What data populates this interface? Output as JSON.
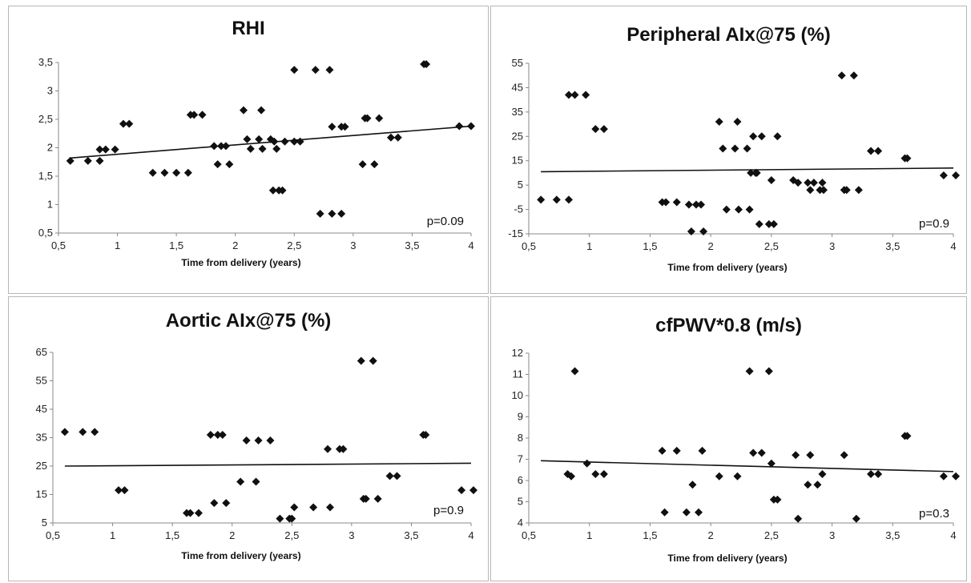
{
  "chart_data": [
    {
      "type": "scatter",
      "title": "RHI",
      "xlabel": "Time from delivery (years)",
      "ylabel": "",
      "xlim": [
        0.5,
        4
      ],
      "ylim": [
        0.5,
        3.5
      ],
      "xticks": [
        "0,5",
        "1",
        "1,5",
        "2",
        "2,5",
        "3",
        "3,5",
        "4"
      ],
      "yticks": [
        "0,5",
        "1",
        "1,5",
        "2",
        "2,5",
        "3",
        "3,5"
      ],
      "annotation": "p=0.09",
      "trend": [
        [
          0.6,
          1.82
        ],
        [
          4.0,
          2.38
        ]
      ],
      "points": [
        [
          0.6,
          1.77
        ],
        [
          0.75,
          1.77
        ],
        [
          0.85,
          1.77
        ],
        [
          0.85,
          1.97
        ],
        [
          0.9,
          1.97
        ],
        [
          0.98,
          1.97
        ],
        [
          1.05,
          2.42
        ],
        [
          1.1,
          2.42
        ],
        [
          1.3,
          1.56
        ],
        [
          1.4,
          1.56
        ],
        [
          1.5,
          1.56
        ],
        [
          1.6,
          1.56
        ],
        [
          1.62,
          2.58
        ],
        [
          1.65,
          2.58
        ],
        [
          1.72,
          2.58
        ],
        [
          1.82,
          2.03
        ],
        [
          1.85,
          1.71
        ],
        [
          1.88,
          2.03
        ],
        [
          1.92,
          2.03
        ],
        [
          1.95,
          1.71
        ],
        [
          2.07,
          2.66
        ],
        [
          2.1,
          2.15
        ],
        [
          2.13,
          1.98
        ],
        [
          2.2,
          2.15
        ],
        [
          2.22,
          2.66
        ],
        [
          2.23,
          1.98
        ],
        [
          2.3,
          2.15
        ],
        [
          2.32,
          1.25
        ],
        [
          2.33,
          2.11
        ],
        [
          2.35,
          1.98
        ],
        [
          2.37,
          1.25
        ],
        [
          2.4,
          1.25
        ],
        [
          2.42,
          2.11
        ],
        [
          2.5,
          3.37
        ],
        [
          2.5,
          2.11
        ],
        [
          2.55,
          2.11
        ],
        [
          2.68,
          3.37
        ],
        [
          2.72,
          0.84
        ],
        [
          2.8,
          3.37
        ],
        [
          2.82,
          2.37
        ],
        [
          2.82,
          0.84
        ],
        [
          2.9,
          2.37
        ],
        [
          2.9,
          0.84
        ],
        [
          2.93,
          2.37
        ],
        [
          3.08,
          1.71
        ],
        [
          3.1,
          2.52
        ],
        [
          3.12,
          2.52
        ],
        [
          3.18,
          1.71
        ],
        [
          3.22,
          2.52
        ],
        [
          3.32,
          2.18
        ],
        [
          3.38,
          2.18
        ],
        [
          3.6,
          3.47
        ],
        [
          3.62,
          3.47
        ],
        [
          3.9,
          2.38
        ],
        [
          4.0,
          2.38
        ]
      ]
    },
    {
      "type": "scatter",
      "title": "Peripheral AIx@75 (%)",
      "xlabel": "Time from delivery (years)",
      "ylabel": "",
      "xlim": [
        0.5,
        4
      ],
      "ylim": [
        -15,
        55
      ],
      "xticks": [
        "0,5",
        "1",
        "1,5",
        "2",
        "2,5",
        "3",
        "3,5",
        "4"
      ],
      "yticks": [
        "-15",
        "-5",
        "5",
        "15",
        "25",
        "35",
        "45",
        "55"
      ],
      "annotation": "p=0.9",
      "trend": [
        [
          0.6,
          10.5
        ],
        [
          4.0,
          12
        ]
      ],
      "points": [
        [
          0.6,
          -1
        ],
        [
          0.73,
          -1
        ],
        [
          0.83,
          -1
        ],
        [
          0.83,
          42
        ],
        [
          0.88,
          42
        ],
        [
          0.97,
          42
        ],
        [
          1.05,
          28
        ],
        [
          1.12,
          28
        ],
        [
          1.6,
          -2
        ],
        [
          1.63,
          -2
        ],
        [
          1.72,
          -2
        ],
        [
          1.82,
          -3
        ],
        [
          1.84,
          -14
        ],
        [
          1.88,
          -3
        ],
        [
          1.92,
          -3
        ],
        [
          1.94,
          -14
        ],
        [
          2.07,
          31
        ],
        [
          2.1,
          20
        ],
        [
          2.13,
          -5
        ],
        [
          2.2,
          20
        ],
        [
          2.22,
          31
        ],
        [
          2.23,
          -5
        ],
        [
          2.3,
          20
        ],
        [
          2.32,
          -5
        ],
        [
          2.33,
          10
        ],
        [
          2.35,
          25
        ],
        [
          2.37,
          10
        ],
        [
          2.38,
          10
        ],
        [
          2.4,
          -11
        ],
        [
          2.42,
          25
        ],
        [
          2.48,
          -11
        ],
        [
          2.5,
          7
        ],
        [
          2.52,
          -11
        ],
        [
          2.55,
          25
        ],
        [
          2.68,
          7
        ],
        [
          2.72,
          6
        ],
        [
          2.8,
          6
        ],
        [
          2.82,
          3
        ],
        [
          2.85,
          6
        ],
        [
          2.9,
          3
        ],
        [
          2.92,
          6
        ],
        [
          2.93,
          3
        ],
        [
          3.08,
          50
        ],
        [
          3.1,
          3
        ],
        [
          3.12,
          3
        ],
        [
          3.18,
          50
        ],
        [
          3.22,
          3
        ],
        [
          3.32,
          19
        ],
        [
          3.38,
          19
        ],
        [
          3.6,
          16
        ],
        [
          3.62,
          16
        ],
        [
          3.92,
          9
        ],
        [
          4.02,
          9
        ]
      ]
    },
    {
      "type": "scatter",
      "title": "Aortic AIx@75 (%)",
      "xlabel": "Time from delivery (years)",
      "ylabel": "",
      "xlim": [
        0.5,
        4
      ],
      "ylim": [
        5,
        65
      ],
      "xticks": [
        "0,5",
        "1",
        "1,5",
        "2",
        "2,5",
        "3",
        "3,5",
        "4"
      ],
      "yticks": [
        "5",
        "15",
        "25",
        "35",
        "45",
        "55",
        "65"
      ],
      "annotation": "p=0.9",
      "trend": [
        [
          0.6,
          25
        ],
        [
          4.0,
          26
        ]
      ],
      "points": [
        [
          0.6,
          37
        ],
        [
          0.75,
          37
        ],
        [
          0.85,
          37
        ],
        [
          1.05,
          16.5
        ],
        [
          1.1,
          16.5
        ],
        [
          1.62,
          8.5
        ],
        [
          1.65,
          8.5
        ],
        [
          1.72,
          8.5
        ],
        [
          1.82,
          36
        ],
        [
          1.85,
          12
        ],
        [
          1.88,
          36
        ],
        [
          1.92,
          36
        ],
        [
          1.95,
          12
        ],
        [
          2.07,
          19.5
        ],
        [
          2.12,
          34
        ],
        [
          2.2,
          19.5
        ],
        [
          2.22,
          34
        ],
        [
          2.32,
          34
        ],
        [
          2.4,
          6.5
        ],
        [
          2.48,
          6.5
        ],
        [
          2.5,
          6.5
        ],
        [
          2.52,
          10.5
        ],
        [
          2.68,
          10.5
        ],
        [
          2.8,
          31
        ],
        [
          2.82,
          10.5
        ],
        [
          2.9,
          31
        ],
        [
          2.93,
          31
        ],
        [
          3.08,
          62
        ],
        [
          3.1,
          13.5
        ],
        [
          3.12,
          13.5
        ],
        [
          3.18,
          62
        ],
        [
          3.22,
          13.5
        ],
        [
          3.32,
          21.5
        ],
        [
          3.38,
          21.5
        ],
        [
          3.6,
          36
        ],
        [
          3.62,
          36
        ],
        [
          3.92,
          16.5
        ],
        [
          4.02,
          16.5
        ]
      ]
    },
    {
      "type": "scatter",
      "title": "cfPWV*0.8 (m/s)",
      "xlabel": "Time from delivery (years)",
      "ylabel": "",
      "xlim": [
        0.5,
        4
      ],
      "ylim": [
        4,
        12
      ],
      "xticks": [
        "0,5",
        "1",
        "1,5",
        "2",
        "2,5",
        "3",
        "3,5",
        "4"
      ],
      "yticks": [
        "4",
        "5",
        "6",
        "7",
        "8",
        "9",
        "10",
        "11",
        "12"
      ],
      "annotation": "p=0.3",
      "trend": [
        [
          0.6,
          6.93
        ],
        [
          4.0,
          6.42
        ]
      ],
      "points": [
        [
          0.82,
          6.3
        ],
        [
          0.85,
          6.2
        ],
        [
          0.88,
          11.15
        ],
        [
          0.98,
          6.8
        ],
        [
          1.05,
          6.3
        ],
        [
          1.12,
          6.3
        ],
        [
          1.6,
          7.4
        ],
        [
          1.62,
          4.5
        ],
        [
          1.72,
          7.4
        ],
        [
          1.8,
          4.5
        ],
        [
          1.85,
          5.8
        ],
        [
          1.9,
          4.5
        ],
        [
          1.93,
          7.4
        ],
        [
          2.07,
          6.2
        ],
        [
          2.22,
          6.2
        ],
        [
          2.32,
          11.15
        ],
        [
          2.35,
          7.3
        ],
        [
          2.42,
          7.3
        ],
        [
          2.48,
          11.15
        ],
        [
          2.5,
          6.8
        ],
        [
          2.52,
          5.1
        ],
        [
          2.55,
          5.1
        ],
        [
          2.7,
          7.2
        ],
        [
          2.72,
          4.2
        ],
        [
          2.8,
          5.8
        ],
        [
          2.82,
          7.2
        ],
        [
          2.88,
          5.8
        ],
        [
          2.92,
          6.3
        ],
        [
          3.1,
          7.2
        ],
        [
          3.2,
          4.2
        ],
        [
          3.32,
          6.3
        ],
        [
          3.38,
          6.3
        ],
        [
          3.6,
          8.1
        ],
        [
          3.62,
          8.1
        ],
        [
          3.92,
          6.2
        ],
        [
          4.02,
          6.2
        ]
      ]
    }
  ]
}
